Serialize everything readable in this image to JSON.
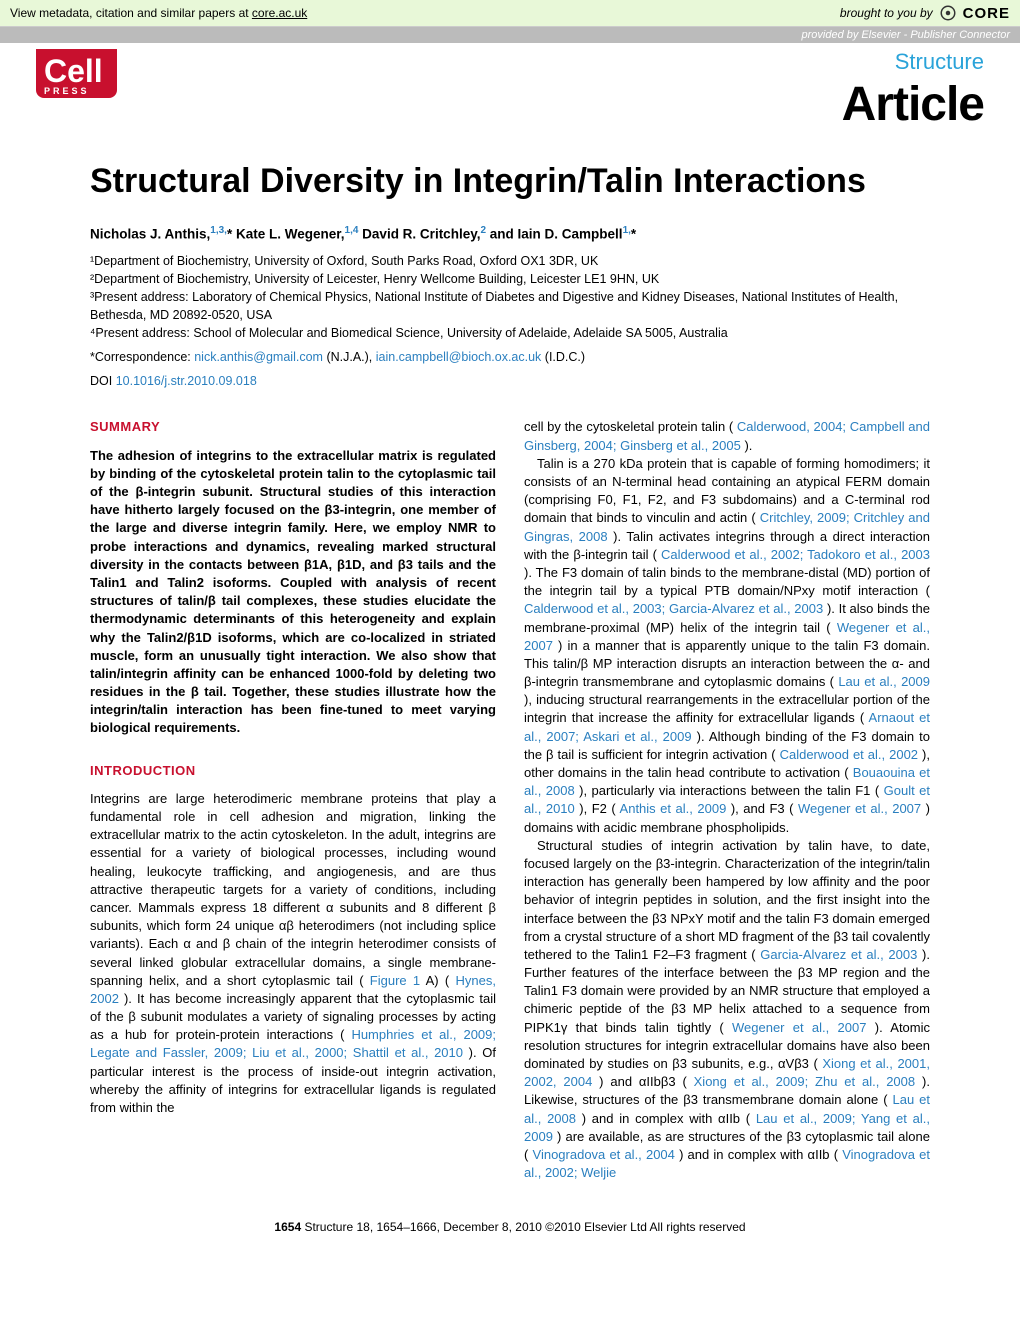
{
  "topbar": {
    "metadata_text": "View metadata, citation and similar papers at ",
    "metadata_link": "core.ac.uk",
    "brought_text": "brought to you by ",
    "core_brand": "CORE",
    "provided_text": "provided by Elsevier - Publisher Connector"
  },
  "header": {
    "publisher_logo": "Cell",
    "publisher_sub": "PRESS",
    "journal": "Structure",
    "article_type": "Article"
  },
  "title": "Structural Diversity in Integrin/Talin Interactions",
  "authors_html": "Nicholas J. Anthis,<sup>1,3,</sup>* Kate L. Wegener,<sup>1,4</sup> David R. Critchley,<sup>2</sup> and Iain D. Campbell<sup>1,</sup>*",
  "affiliations": [
    "¹Department of Biochemistry, University of Oxford, South Parks Road, Oxford OX1 3DR, UK",
    "²Department of Biochemistry, University of Leicester, Henry Wellcome Building, Leicester LE1 9HN, UK",
    "³Present address: Laboratory of Chemical Physics, National Institute of Diabetes and Digestive and Kidney Diseases, National Institutes of Health, Bethesda, MD 20892-0520, USA",
    "⁴Present address: School of Molecular and Biomedical Science, University of Adelaide, Adelaide SA 5005, Australia"
  ],
  "correspondence": {
    "prefix": "*Correspondence: ",
    "email1": "nick.anthis@gmail.com",
    "name1": " (N.J.A.), ",
    "email2": "iain.campbell@bioch.ox.ac.uk",
    "name2": " (I.D.C.)"
  },
  "doi": {
    "prefix": "DOI ",
    "value": "10.1016/j.str.2010.09.018"
  },
  "sections": {
    "summary_head": "SUMMARY",
    "summary_text": "The adhesion of integrins to the extracellular matrix is regulated by binding of the cytoskeletal protein talin to the cytoplasmic tail of the β-integrin subunit. Structural studies of this interaction have hitherto largely focused on the β3-integrin, one member of the large and diverse integrin family. Here, we employ NMR to probe interactions and dynamics, revealing marked structural diversity in the contacts between β1A, β1D, and β3 tails and the Talin1 and Talin2 isoforms. Coupled with analysis of recent structures of talin/β tail complexes, these studies elucidate the thermodynamic determinants of this heterogeneity and explain why the Talin2/β1D isoforms, which are co-localized in striated muscle, form an unusually tight interaction. We also show that talin/integrin affinity can be enhanced 1000-fold by deleting two residues in the β tail. Together, these studies illustrate how the integrin/talin interaction has been fine-tuned to meet varying biological requirements.",
    "intro_head": "INTRODUCTION",
    "intro_left": "Integrins are large heterodimeric membrane proteins that play a fundamental role in cell adhesion and migration, linking the extracellular matrix to the actin cytoskeleton. In the adult, integrins are essential for a variety of biological processes, including wound healing, leukocyte trafficking, and angiogenesis, and are thus attractive therapeutic targets for a variety of conditions, including cancer. Mammals express 18 different α subunits and 8 different β subunits, which form 24 unique αβ heterodimers (not including splice variants). Each α and β chain of the integrin heterodimer consists of several linked globular extracellular domains, a single membrane-spanning helix, and a short cytoplasmic tail (",
    "intro_left_ref1": "Figure 1",
    "intro_left_mid1": "A) (",
    "intro_left_ref2": "Hynes, 2002",
    "intro_left_mid2": "). It has become increasingly apparent that the cytoplasmic tail of the β subunit modulates a variety of signaling processes by acting as a hub for protein-protein interactions (",
    "intro_left_ref3": "Humphries et al., 2009; Legate and Fassler, 2009; Liu et al., 2000; Shattil et al., 2010",
    "intro_left_end": "). Of particular interest is the process of inside-out integrin activation, whereby the affinity of integrins for extracellular ligands is regulated from within the",
    "right_p1_a": "cell by the cytoskeletal protein talin (",
    "right_p1_ref1": "Calderwood, 2004; Campbell and Ginsberg, 2004; Ginsberg et al., 2005",
    "right_p1_b": ").",
    "right_p2_a": "Talin is a 270 kDa protein that is capable of forming homodimers; it consists of an N-terminal head containing an atypical FERM domain (comprising F0, F1, F2, and F3 subdomains) and a C-terminal rod domain that binds to vinculin and actin (",
    "right_p2_ref1": "Critchley, 2009; Critchley and Gingras, 2008",
    "right_p2_b": "). Talin activates integrins through a direct interaction with the β-integrin tail (",
    "right_p2_ref2": "Calderwood et al., 2002; Tadokoro et al., 2003",
    "right_p2_c": "). The F3 domain of talin binds to the membrane-distal (MD) portion of the integrin tail by a typical PTB domain/NPxy motif interaction (",
    "right_p2_ref3": "Calderwood et al., 2003; Garcia-Alvarez et al., 2003",
    "right_p2_d": "). It also binds the membrane-proximal (MP) helix of the integrin tail (",
    "right_p2_ref4": "Wegener et al., 2007",
    "right_p2_e": ") in a manner that is apparently unique to the talin F3 domain. This talin/β MP interaction disrupts an interaction between the α- and β-integrin transmembrane and cytoplasmic domains (",
    "right_p2_ref5": "Lau et al., 2009",
    "right_p2_f": "), inducing structural rearrangements in the extracellular portion of the integrin that increase the affinity for extracellular ligands (",
    "right_p2_ref6": "Arnaout et al., 2007; Askari et al., 2009",
    "right_p2_g": "). Although binding of the F3 domain to the β tail is sufficient for integrin activation (",
    "right_p2_ref7": "Calderwood et al., 2002",
    "right_p2_h": "), other domains in the talin head contribute to activation (",
    "right_p2_ref8": "Bouaouina et al., 2008",
    "right_p2_i": "), particularly via interactions between the talin F1 (",
    "right_p2_ref9": "Goult et al., 2010",
    "right_p2_j": "), F2 (",
    "right_p2_ref10": "Anthis et al., 2009",
    "right_p2_k": "), and F3 (",
    "right_p2_ref11": "Wegener et al., 2007",
    "right_p2_l": ") domains with acidic membrane phospholipids.",
    "right_p3_a": "Structural studies of integrin activation by talin have, to date, focused largely on the β3-integrin. Characterization of the integrin/talin interaction has generally been hampered by low affinity and the poor behavior of integrin peptides in solution, and the first insight into the interface between the β3 NPxY motif and the talin F3 domain emerged from a crystal structure of a short MD fragment of the β3 tail covalently tethered to the Talin1 F2–F3 fragment (",
    "right_p3_ref1": "Garcia-Alvarez et al., 2003",
    "right_p3_b": "). Further features of the interface between the β3 MP region and the Talin1 F3 domain were provided by an NMR structure that employed a chimeric peptide of the β3 MP helix attached to a sequence from PIPK1γ that binds talin tightly (",
    "right_p3_ref2": "Wegener et al., 2007",
    "right_p3_c": "). Atomic resolution structures for integrin extracellular domains have also been dominated by studies on β3 subunits, e.g., αVβ3 (",
    "right_p3_ref3": "Xiong et al., 2001, 2002, 2004",
    "right_p3_d": ") and αIIbβ3 (",
    "right_p3_ref4": "Xiong et al., 2009; Zhu et al., 2008",
    "right_p3_e": "). Likewise, structures of the β3 transmembrane domain alone (",
    "right_p3_ref5": "Lau et al., 2008",
    "right_p3_f": ") and in complex with αIIb (",
    "right_p3_ref6": "Lau et al., 2009; Yang et al., 2009",
    "right_p3_g": ") are available, as are structures of the β3 cytoplasmic tail alone (",
    "right_p3_ref7": "Vinogradova et al., 2004",
    "right_p3_h": ") and in complex with αIIb (",
    "right_p3_ref8": "Vinogradova et al., 2002; Weljie"
  },
  "footer": {
    "page": "1654",
    "citation": " Structure 18, 1654–1666, December 8, 2010 ©2010 Elsevier Ltd All rights reserved"
  },
  "colors": {
    "accent_red": "#c8102e",
    "link_blue": "#2a7fbf",
    "journal_blue": "#2aa3d9",
    "topbar_bg": "#e8f8d8",
    "provided_bg": "#bbbbbb"
  }
}
